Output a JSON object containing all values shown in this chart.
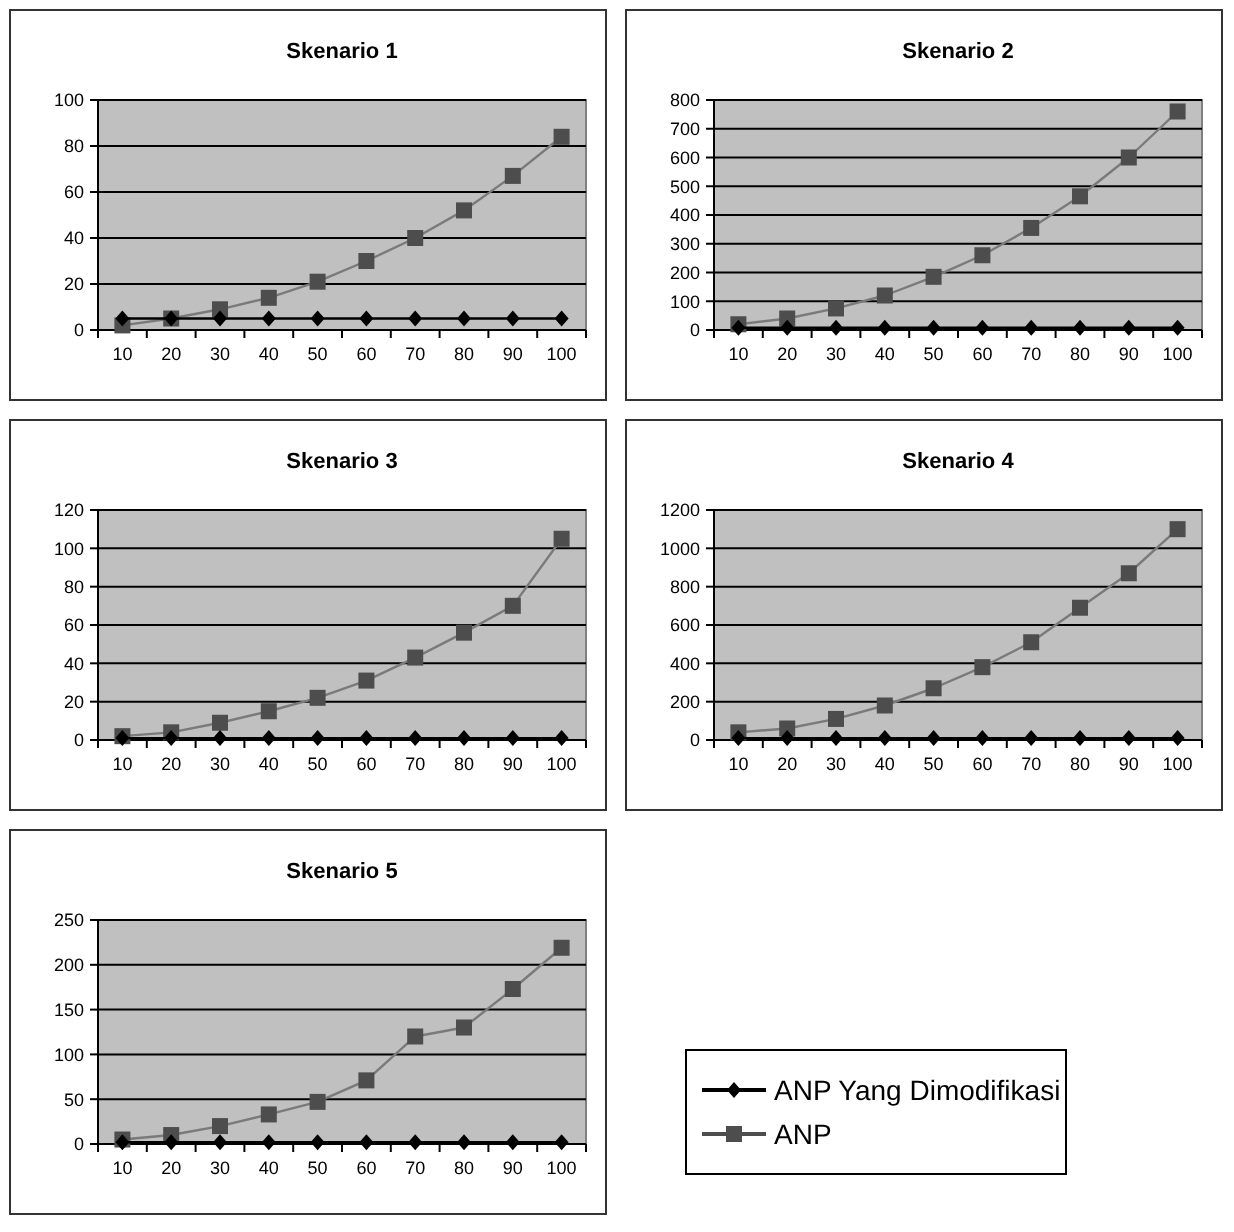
{
  "chart_data": [
    {
      "type": "line",
      "title": "Skenario 1",
      "categories": [
        "10",
        "20",
        "30",
        "40",
        "50",
        "60",
        "70",
        "80",
        "90",
        "100"
      ],
      "ylim": [
        0,
        100
      ],
      "yticks": [
        0,
        20,
        40,
        60,
        80,
        100
      ],
      "grid": "y",
      "legend": false,
      "series": [
        {
          "color": "#000000",
          "marker": "diamond",
          "values": [
            5,
            5,
            5,
            5,
            5,
            5,
            5,
            5,
            5,
            5
          ]
        },
        {
          "color": "#4d4d4d",
          "marker": "square",
          "values": [
            2,
            5,
            9,
            14,
            21,
            30,
            40,
            52,
            67,
            84
          ]
        }
      ]
    },
    {
      "type": "line",
      "title": "Skenario 2",
      "categories": [
        "10",
        "20",
        "30",
        "40",
        "50",
        "60",
        "70",
        "80",
        "90",
        "100"
      ],
      "ylim": [
        0,
        800
      ],
      "yticks": [
        0,
        100,
        200,
        300,
        400,
        500,
        600,
        700,
        800
      ],
      "grid": "y",
      "legend": false,
      "series": [
        {
          "color": "#000000",
          "marker": "diamond",
          "values": [
            8,
            8,
            8,
            8,
            8,
            8,
            8,
            8,
            8,
            8
          ]
        },
        {
          "color": "#4d4d4d",
          "marker": "square",
          "values": [
            20,
            40,
            75,
            120,
            185,
            260,
            355,
            465,
            600,
            760
          ]
        }
      ]
    },
    {
      "type": "line",
      "title": "Skenario 3",
      "categories": [
        "10",
        "20",
        "30",
        "40",
        "50",
        "60",
        "70",
        "80",
        "90",
        "100"
      ],
      "ylim": [
        0,
        120
      ],
      "yticks": [
        0,
        20,
        40,
        60,
        80,
        100,
        120
      ],
      "grid": "y",
      "legend": false,
      "series": [
        {
          "color": "#000000",
          "marker": "diamond",
          "values": [
            1,
            1,
            1,
            1,
            1,
            1,
            1,
            1,
            1,
            1
          ]
        },
        {
          "color": "#4d4d4d",
          "marker": "square",
          "values": [
            2,
            4,
            9,
            15,
            22,
            31,
            43,
            56,
            70,
            105
          ]
        }
      ]
    },
    {
      "type": "line",
      "title": "Skenario 4",
      "categories": [
        "10",
        "20",
        "30",
        "40",
        "50",
        "60",
        "70",
        "80",
        "90",
        "100"
      ],
      "ylim": [
        0,
        1200
      ],
      "yticks": [
        0,
        200,
        400,
        600,
        800,
        1000,
        1200
      ],
      "grid": "y",
      "legend": false,
      "series": [
        {
          "color": "#000000",
          "marker": "diamond",
          "values": [
            10,
            10,
            10,
            10,
            10,
            10,
            10,
            10,
            10,
            10
          ]
        },
        {
          "color": "#4d4d4d",
          "marker": "square",
          "values": [
            40,
            60,
            110,
            180,
            270,
            380,
            510,
            690,
            870,
            1100
          ]
        }
      ]
    },
    {
      "type": "line",
      "title": "Skenario 5",
      "categories": [
        "10",
        "20",
        "30",
        "40",
        "50",
        "60",
        "70",
        "80",
        "90",
        "100"
      ],
      "ylim": [
        0,
        250
      ],
      "yticks": [
        0,
        50,
        100,
        150,
        200,
        250
      ],
      "grid": "y",
      "legend": "right",
      "series": [
        {
          "name": "ANP Yang Dimodifikasi",
          "color": "#000000",
          "marker": "diamond",
          "values": [
            2,
            2,
            2,
            2,
            2,
            2,
            2,
            2,
            2,
            2
          ]
        },
        {
          "name": "ANP",
          "color": "#4d4d4d",
          "marker": "square",
          "values": [
            5,
            10,
            20,
            33,
            47,
            71,
            120,
            130,
            173,
            219
          ]
        }
      ]
    }
  ]
}
